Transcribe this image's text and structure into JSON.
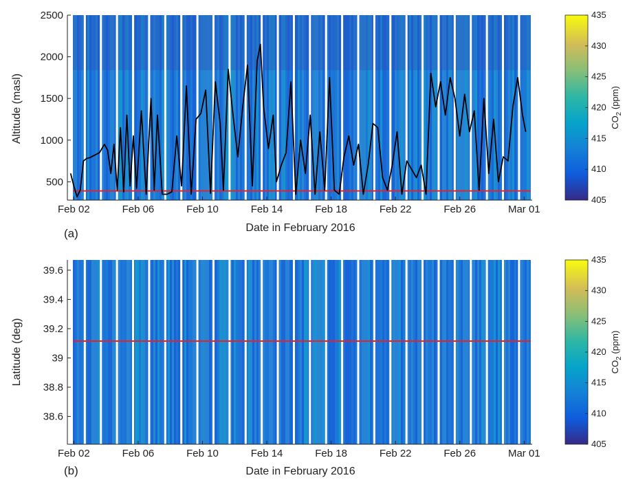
{
  "chart_data": [
    {
      "type": "heatmap",
      "panel_label": "(a)",
      "xlabel": "Date in February 2016",
      "ylabel": "Altitude (masl)",
      "x_ticks": [
        "Feb 02",
        "Feb 06",
        "Feb 10",
        "Feb 14",
        "Feb 18",
        "Feb 22",
        "Feb 26",
        "Mar 01"
      ],
      "x_tick_days": [
        2,
        6,
        10,
        14,
        18,
        22,
        26,
        30
      ],
      "xlim": [
        1.6,
        30.5
      ],
      "y_ticks": [
        500,
        1000,
        1500,
        2000,
        2500
      ],
      "ylim": [
        280,
        2500
      ],
      "colorbar": {
        "label_main": "CO",
        "label_sub": "2",
        "label_unit": " (ppm)",
        "ticks": [
          405,
          410,
          415,
          420,
          425,
          430,
          435
        ],
        "range": [
          405,
          435
        ]
      },
      "reference_line": {
        "y": 390,
        "color": "#e8202a"
      },
      "series": [
        {
          "name": "",
          "color": "#000000",
          "x": [
            1.8,
            2.0,
            2.2,
            2.4,
            2.6,
            2.8,
            3.0,
            3.3,
            3.6,
            3.9,
            4.1,
            4.3,
            4.5,
            4.7,
            4.9,
            5.1,
            5.3,
            5.5,
            5.7,
            5.9,
            6.2,
            6.5,
            6.8,
            7.0,
            7.2,
            7.5,
            7.8,
            8.1,
            8.4,
            8.7,
            9.0,
            9.3,
            9.6,
            9.9,
            10.2,
            10.5,
            10.8,
            11.1,
            11.3,
            11.6,
            11.9,
            12.2,
            12.5,
            12.8,
            13.1,
            13.4,
            13.6,
            13.8,
            14.1,
            14.4,
            14.6,
            14.9,
            15.2,
            15.5,
            15.8,
            16.1,
            16.4,
            16.7,
            17.0,
            17.3,
            17.6,
            17.9,
            18.2,
            18.5,
            18.8,
            19.1,
            19.4,
            19.7,
            20.0,
            20.3,
            20.6,
            20.9,
            21.2,
            21.5,
            21.8,
            22.1,
            22.4,
            22.7,
            23.0,
            23.3,
            23.6,
            23.9,
            24.2,
            24.5,
            24.8,
            25.1,
            25.4,
            25.7,
            26.0,
            26.3,
            26.6,
            26.9,
            27.2,
            27.5,
            27.8,
            28.1,
            28.4,
            28.7,
            29.0,
            29.3,
            29.6,
            29.9,
            30.1
          ],
          "y": [
            600,
            450,
            320,
            400,
            750,
            780,
            790,
            820,
            850,
            950,
            880,
            600,
            950,
            400,
            1150,
            380,
            1300,
            450,
            1050,
            420,
            1350,
            350,
            1500,
            400,
            1300,
            350,
            350,
            380,
            1050,
            450,
            1650,
            350,
            1250,
            1320,
            1600,
            360,
            1700,
            1200,
            400,
            1850,
            1300,
            800,
            1400,
            1900,
            450,
            1950,
            2150,
            1400,
            900,
            1300,
            500,
            700,
            850,
            1700,
            350,
            1000,
            600,
            1300,
            350,
            1100,
            400,
            1750,
            400,
            350,
            800,
            1050,
            700,
            950,
            350,
            700,
            1200,
            1150,
            550,
            400,
            700,
            1100,
            350,
            750,
            650,
            550,
            700,
            350,
            1800,
            1400,
            1700,
            1300,
            1750,
            1500,
            1050,
            1550,
            1100,
            1350,
            400,
            1500,
            600,
            1250,
            500,
            800,
            750,
            1400,
            1750,
            1300,
            1100
          ]
        }
      ]
    },
    {
      "type": "heatmap",
      "panel_label": "(b)",
      "xlabel": "Date in February 2016",
      "ylabel": "Latitude (deg)",
      "x_ticks": [
        "Feb 02",
        "Feb 06",
        "Feb 10",
        "Feb 14",
        "Feb 18",
        "Feb 22",
        "Feb 26",
        "Mar 01"
      ],
      "x_tick_days": [
        2,
        6,
        10,
        14,
        18,
        22,
        26,
        30
      ],
      "xlim": [
        1.6,
        30.5
      ],
      "y_ticks": [
        38.6,
        38.8,
        39,
        39.2,
        39.4,
        39.6
      ],
      "y_tick_labels": [
        "38.6",
        "38.8",
        "39",
        "39.2",
        "39.4",
        "39.6"
      ],
      "ylim": [
        38.41,
        39.67
      ],
      "colorbar": {
        "label_main": "CO",
        "label_sub": "2",
        "label_unit": " (ppm)",
        "ticks": [
          405,
          410,
          415,
          420,
          425,
          430,
          435
        ],
        "range": [
          405,
          435
        ]
      },
      "reference_line": {
        "y": 39.115,
        "color": "#e8202a"
      },
      "series": []
    }
  ]
}
